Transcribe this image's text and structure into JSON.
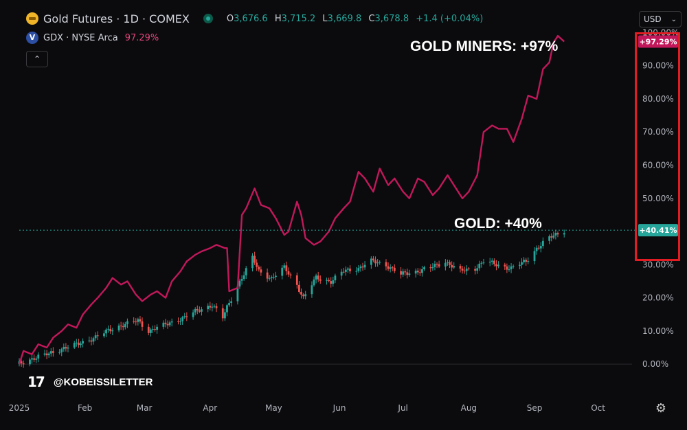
{
  "header": {
    "main_symbol": "Gold Futures · 1D · COMEX",
    "ohlc": [
      {
        "label": "O",
        "value": "3,676.6"
      },
      {
        "label": "H",
        "value": "3,715.2"
      },
      {
        "label": "L",
        "value": "3,669.8"
      },
      {
        "label": "C",
        "value": "3,678.8"
      }
    ],
    "change": "+1.4 (+0.04%)",
    "compare_symbol": "GDX · NYSE Arca",
    "compare_value": "97.29%",
    "collapse_icon": "chevron-up-icon"
  },
  "currency_label": "USD",
  "currency_icon": "chevron-down-icon",
  "annotations": {
    "miners": "GOLD MINERS: +97%",
    "gold": "GOLD: +40%"
  },
  "watermark": "@KOBEISSILETTER",
  "tv_logo": "17",
  "settings_icon": "gear-icon",
  "chart_data": {
    "type": "line",
    "y_axis": {
      "ticks": [
        "100.00%",
        "90.00%",
        "80.00%",
        "70.00%",
        "60.00%",
        "50.00%",
        "30.00%",
        "20.00%",
        "10.00%",
        "0.00%"
      ],
      "tick_values": [
        100,
        90,
        80,
        70,
        60,
        50,
        30,
        20,
        10,
        0
      ],
      "range": [
        -1,
        100.5
      ],
      "scale": "linear",
      "position": "right"
    },
    "x_axis": {
      "ticks": [
        "2025",
        "Feb",
        "Mar",
        "Apr",
        "May",
        "Jun",
        "Jul",
        "Aug",
        "Sep",
        "Oct"
      ],
      "tick_dates": [
        "2025-01-01",
        "2025-02-01",
        "2025-03-01",
        "2025-04-01",
        "2025-05-01",
        "2025-06-01",
        "2025-07-01",
        "2025-08-01",
        "2025-09-01",
        "2025-10-01"
      ],
      "range": [
        "2025-01-01",
        "2025-10-17"
      ]
    },
    "grid": false,
    "last_value_labels": [
      {
        "series": "GDX",
        "text": "+97.29%",
        "value": 97.29,
        "color": "#c2185b"
      },
      {
        "series": "Gold Futures",
        "text": "+40.41%",
        "value": 40.41,
        "color": "#26a69a"
      }
    ],
    "series": [
      {
        "name": "GDX",
        "type": "line",
        "color": "#c2185b",
        "points": [
          [
            "2025-01-01",
            0
          ],
          [
            "2025-01-03",
            4
          ],
          [
            "2025-01-07",
            3
          ],
          [
            "2025-01-10",
            6
          ],
          [
            "2025-01-14",
            5
          ],
          [
            "2025-01-17",
            8
          ],
          [
            "2025-01-21",
            10
          ],
          [
            "2025-01-24",
            12
          ],
          [
            "2025-01-28",
            11
          ],
          [
            "2025-01-31",
            15
          ],
          [
            "2025-02-04",
            18
          ],
          [
            "2025-02-07",
            20
          ],
          [
            "2025-02-11",
            23
          ],
          [
            "2025-02-14",
            26
          ],
          [
            "2025-02-18",
            24
          ],
          [
            "2025-02-21",
            25
          ],
          [
            "2025-02-25",
            21
          ],
          [
            "2025-02-28",
            19
          ],
          [
            "2025-03-04",
            21
          ],
          [
            "2025-03-07",
            22
          ],
          [
            "2025-03-11",
            20
          ],
          [
            "2025-03-14",
            25
          ],
          [
            "2025-03-18",
            28
          ],
          [
            "2025-03-21",
            31
          ],
          [
            "2025-03-25",
            33
          ],
          [
            "2025-03-28",
            34
          ],
          [
            "2025-04-01",
            35
          ],
          [
            "2025-04-04",
            36
          ],
          [
            "2025-04-08",
            35
          ],
          [
            "2025-04-09",
            35
          ],
          [
            "2025-04-10",
            22
          ],
          [
            "2025-04-14",
            23
          ],
          [
            "2025-04-16",
            45
          ],
          [
            "2025-04-18",
            47
          ],
          [
            "2025-04-22",
            53
          ],
          [
            "2025-04-25",
            48
          ],
          [
            "2025-04-29",
            47
          ],
          [
            "2025-05-02",
            44
          ],
          [
            "2025-05-06",
            39
          ],
          [
            "2025-05-08",
            40
          ],
          [
            "2025-05-12",
            49
          ],
          [
            "2025-05-14",
            45
          ],
          [
            "2025-05-16",
            38
          ],
          [
            "2025-05-20",
            36
          ],
          [
            "2025-05-23",
            37
          ],
          [
            "2025-05-27",
            40
          ],
          [
            "2025-05-30",
            44
          ],
          [
            "2025-06-03",
            47
          ],
          [
            "2025-06-06",
            49
          ],
          [
            "2025-06-10",
            58
          ],
          [
            "2025-06-13",
            56
          ],
          [
            "2025-06-17",
            52
          ],
          [
            "2025-06-20",
            59
          ],
          [
            "2025-06-24",
            54
          ],
          [
            "2025-06-27",
            56
          ],
          [
            "2025-07-01",
            52
          ],
          [
            "2025-07-04",
            50
          ],
          [
            "2025-07-08",
            56
          ],
          [
            "2025-07-11",
            55
          ],
          [
            "2025-07-15",
            51
          ],
          [
            "2025-07-18",
            53
          ],
          [
            "2025-07-22",
            57
          ],
          [
            "2025-07-25",
            54
          ],
          [
            "2025-07-29",
            50
          ],
          [
            "2025-08-01",
            52
          ],
          [
            "2025-08-05",
            57
          ],
          [
            "2025-08-08",
            70
          ],
          [
            "2025-08-12",
            72
          ],
          [
            "2025-08-15",
            71
          ],
          [
            "2025-08-19",
            71
          ],
          [
            "2025-08-22",
            67
          ],
          [
            "2025-08-26",
            74
          ],
          [
            "2025-08-29",
            81
          ],
          [
            "2025-09-02",
            80
          ],
          [
            "2025-09-05",
            89
          ],
          [
            "2025-09-08",
            91
          ],
          [
            "2025-09-10",
            97
          ],
          [
            "2025-09-12",
            99
          ],
          [
            "2025-09-15",
            97.29
          ]
        ]
      },
      {
        "name": "Gold Futures",
        "type": "candlestick",
        "up_color": "#26a69a",
        "down_color": "#ef5350",
        "close_points": [
          [
            "2025-01-01",
            0
          ],
          [
            "2025-01-08",
            2
          ],
          [
            "2025-01-15",
            3
          ],
          [
            "2025-01-22",
            5
          ],
          [
            "2025-01-29",
            6
          ],
          [
            "2025-02-05",
            8
          ],
          [
            "2025-02-12",
            10
          ],
          [
            "2025-02-19",
            12
          ],
          [
            "2025-02-26",
            13
          ],
          [
            "2025-03-03",
            10
          ],
          [
            "2025-03-06",
            11
          ],
          [
            "2025-03-12",
            12
          ],
          [
            "2025-03-19",
            14
          ],
          [
            "2025-03-26",
            16
          ],
          [
            "2025-04-02",
            18
          ],
          [
            "2025-04-07",
            14
          ],
          [
            "2025-04-09",
            17
          ],
          [
            "2025-04-15",
            25
          ],
          [
            "2025-04-21",
            32
          ],
          [
            "2025-04-24",
            28
          ],
          [
            "2025-04-30",
            26
          ],
          [
            "2025-05-06",
            29
          ],
          [
            "2025-05-12",
            24
          ],
          [
            "2025-05-15",
            20
          ],
          [
            "2025-05-21",
            26
          ],
          [
            "2025-05-28",
            25
          ],
          [
            "2025-06-03",
            28
          ],
          [
            "2025-06-10",
            29
          ],
          [
            "2025-06-16",
            31
          ],
          [
            "2025-06-23",
            30
          ],
          [
            "2025-06-30",
            27
          ],
          [
            "2025-07-07",
            28
          ],
          [
            "2025-07-14",
            29
          ],
          [
            "2025-07-21",
            31
          ],
          [
            "2025-07-28",
            28
          ],
          [
            "2025-08-04",
            29
          ],
          [
            "2025-08-08",
            31
          ],
          [
            "2025-08-14",
            30
          ],
          [
            "2025-08-21",
            29
          ],
          [
            "2025-08-28",
            31
          ],
          [
            "2025-09-02",
            35
          ],
          [
            "2025-09-08",
            38
          ],
          [
            "2025-09-15",
            40.41
          ]
        ]
      }
    ]
  }
}
